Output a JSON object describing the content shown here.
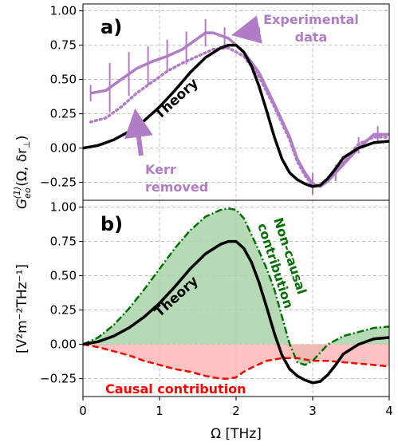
{
  "colors": {
    "theory": "#000000",
    "experimental": "#b07cc6",
    "causal": "#ff0000",
    "noncausal": "#007000",
    "causal_fill": "#ffb3b3",
    "noncausal_fill": "#a8d3a8",
    "grid": "#b0b0b0"
  },
  "axes": {
    "ylabel_text": "[V²m⁻²THz⁻¹]",
    "ylabel_math": "G",
    "ylabel_sub": "eo",
    "ylabel_sup": "(1)",
    "ylabel_args": "(Ω, δr",
    "ylabel_perp": "⊥",
    "ylabel_close": ")",
    "xlabel": "Ω   [THz]",
    "xticks": [
      "0",
      "1",
      "2",
      "3",
      "4"
    ]
  },
  "chart_data": [
    {
      "type": "line",
      "panel_label": "a)",
      "xlim": [
        0,
        4
      ],
      "ylim": [
        -0.38,
        1.05
      ],
      "yticks": [
        "−0.25",
        "0.00",
        "0.25",
        "0.50",
        "0.75",
        "1.00"
      ],
      "ytick_values": [
        -0.25,
        0,
        0.25,
        0.5,
        0.75,
        1.0
      ],
      "grid": true,
      "annotations": {
        "experimental": [
          "Experimental",
          "data"
        ],
        "kerr": [
          "Kerr",
          "removed"
        ],
        "theory": "Theory"
      },
      "series": [
        {
          "key": "theory",
          "x": [
            0,
            0.2,
            0.4,
            0.6,
            0.8,
            1.0,
            1.2,
            1.4,
            1.6,
            1.8,
            1.9,
            2.0,
            2.1,
            2.2,
            2.3,
            2.4,
            2.5,
            2.6,
            2.7,
            2.8,
            2.9,
            3.0,
            3.1,
            3.2,
            3.3,
            3.4,
            3.6,
            3.8,
            4.0
          ],
          "y": [
            0,
            0.02,
            0.06,
            0.12,
            0.2,
            0.3,
            0.42,
            0.55,
            0.66,
            0.73,
            0.75,
            0.75,
            0.7,
            0.6,
            0.45,
            0.27,
            0.08,
            -0.08,
            -0.18,
            -0.23,
            -0.26,
            -0.28,
            -0.27,
            -0.22,
            -0.15,
            -0.07,
            0.0,
            0.04,
            0.05
          ]
        },
        {
          "key": "experimental",
          "x": [
            0.1,
            0.3,
            0.5,
            0.7,
            0.9,
            1.1,
            1.3,
            1.5,
            1.6,
            1.7,
            1.9,
            2.1,
            2.3,
            2.5,
            2.7,
            2.8,
            2.9,
            3.0,
            3.1,
            3.2,
            3.4,
            3.6,
            3.8,
            4.0
          ],
          "y": [
            0.4,
            0.42,
            0.5,
            0.58,
            0.63,
            0.67,
            0.72,
            0.8,
            0.84,
            0.84,
            0.8,
            0.7,
            0.55,
            0.32,
            0.08,
            -0.08,
            -0.18,
            -0.26,
            -0.28,
            -0.24,
            -0.12,
            0.0,
            0.1,
            0.1
          ]
        },
        {
          "key": "kerr_removed",
          "x": [
            0.1,
            0.3,
            0.5,
            0.7,
            0.9,
            1.1,
            1.3,
            1.5,
            1.7,
            1.9,
            2.1,
            2.3,
            2.5,
            2.7,
            2.8,
            2.9,
            3.0,
            3.1,
            3.2,
            3.4,
            3.6,
            3.8,
            4.0
          ],
          "y": [
            0.19,
            0.22,
            0.3,
            0.4,
            0.48,
            0.56,
            0.62,
            0.67,
            0.72,
            0.73,
            0.67,
            0.52,
            0.3,
            0.06,
            -0.1,
            -0.2,
            -0.27,
            -0.28,
            -0.24,
            -0.1,
            0.03,
            0.08,
            0.08
          ]
        },
        {
          "key": "errorbars",
          "x": [
            0.1,
            0.35,
            0.6,
            0.85,
            1.1,
            1.35,
            1.6,
            1.85,
            3.0,
            3.3,
            3.6,
            3.85
          ],
          "y": [
            0.4,
            0.44,
            0.54,
            0.6,
            0.67,
            0.73,
            0.84,
            0.8,
            -0.26,
            -0.18,
            0.02,
            0.1
          ],
          "err": [
            0.06,
            0.18,
            0.16,
            0.14,
            0.12,
            0.12,
            0.1,
            0.08,
            0.08,
            0.06,
            0.06,
            0.06
          ]
        }
      ]
    },
    {
      "type": "area",
      "panel_label": "b)",
      "xlim": [
        0,
        4
      ],
      "ylim": [
        -0.38,
        1.05
      ],
      "yticks": [
        "−0.25",
        "0.00",
        "0.25",
        "0.50",
        "0.75",
        "1.00"
      ],
      "ytick_values": [
        -0.25,
        0,
        0.25,
        0.5,
        0.75,
        1.0
      ],
      "grid": true,
      "annotations": {
        "noncausal": [
          "Non-causal",
          "contribution"
        ],
        "causal": "Causal contribution",
        "theory": "Theory"
      },
      "series": [
        {
          "key": "theory",
          "x": [
            0,
            0.2,
            0.4,
            0.6,
            0.8,
            1.0,
            1.2,
            1.4,
            1.6,
            1.8,
            1.9,
            2.0,
            2.1,
            2.2,
            2.3,
            2.4,
            2.5,
            2.6,
            2.7,
            2.8,
            2.9,
            3.0,
            3.1,
            3.2,
            3.3,
            3.4,
            3.6,
            3.8,
            4.0
          ],
          "y": [
            0,
            0.02,
            0.06,
            0.12,
            0.2,
            0.3,
            0.42,
            0.55,
            0.66,
            0.73,
            0.75,
            0.75,
            0.7,
            0.6,
            0.45,
            0.27,
            0.08,
            -0.08,
            -0.18,
            -0.23,
            -0.26,
            -0.28,
            -0.27,
            -0.22,
            -0.15,
            -0.07,
            0.0,
            0.04,
            0.05
          ]
        },
        {
          "key": "noncausal",
          "x": [
            0,
            0.2,
            0.4,
            0.6,
            0.8,
            1.0,
            1.2,
            1.4,
            1.6,
            1.8,
            1.9,
            2.0,
            2.1,
            2.2,
            2.3,
            2.4,
            2.5,
            2.6,
            2.7,
            2.8,
            2.9,
            3.0,
            3.1,
            3.2,
            3.4,
            3.6,
            3.8,
            4.0
          ],
          "y": [
            0,
            0.05,
            0.14,
            0.26,
            0.4,
            0.55,
            0.7,
            0.83,
            0.93,
            0.98,
            0.99,
            0.98,
            0.92,
            0.8,
            0.68,
            0.55,
            0.4,
            0.2,
            0.0,
            -0.13,
            -0.15,
            -0.12,
            -0.06,
            0.0,
            0.06,
            0.09,
            0.12,
            0.13
          ]
        },
        {
          "key": "causal",
          "x": [
            0,
            0.2,
            0.4,
            0.6,
            0.8,
            1.0,
            1.2,
            1.4,
            1.6,
            1.8,
            1.9,
            2.0,
            2.1,
            2.2,
            2.4,
            2.6,
            2.8,
            3.0,
            3.2,
            3.4,
            3.6,
            3.8,
            4.0
          ],
          "y": [
            0,
            -0.02,
            -0.05,
            -0.08,
            -0.12,
            -0.15,
            -0.18,
            -0.2,
            -0.23,
            -0.25,
            -0.25,
            -0.24,
            -0.2,
            -0.17,
            -0.12,
            -0.1,
            -0.1,
            -0.12,
            -0.12,
            -0.13,
            -0.14,
            -0.15,
            -0.16
          ]
        }
      ]
    }
  ]
}
